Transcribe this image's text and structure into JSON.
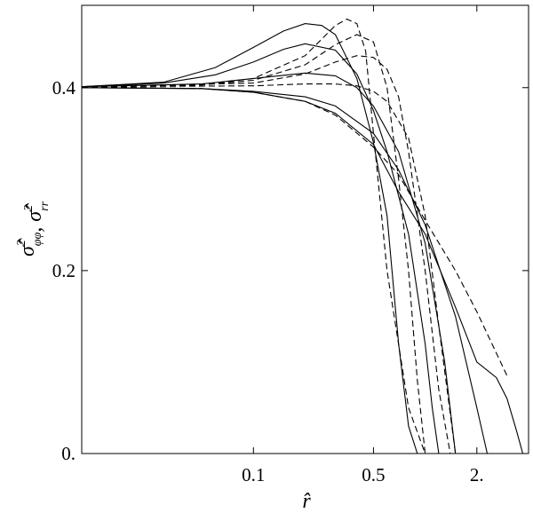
{
  "chart_data": {
    "type": "line",
    "x_scale": "log",
    "xlim": [
      0.01,
      4.0
    ],
    "ylim": [
      0,
      0.49
    ],
    "grid": false,
    "legend": "none",
    "xlabel": "r̂",
    "ylabel": {
      "parts": [
        {
          "text": "σ̂",
          "sup": "2",
          "sub": "φφ"
        },
        {
          "text": ", "
        },
        {
          "text": "σ̂",
          "sup": "2",
          "sub": "rr"
        }
      ]
    },
    "x_ticks": [
      {
        "value": 0.1,
        "label": "0.1"
      },
      {
        "value": 0.5,
        "label": "0.5"
      },
      {
        "value": 2.0,
        "label": "2."
      }
    ],
    "y_ticks": [
      {
        "value": 0.0,
        "label": "0."
      },
      {
        "value": 0.2,
        "label": "0.2"
      },
      {
        "value": 0.4,
        "label": "0.4"
      }
    ],
    "series": [
      {
        "style": "solid",
        "x": [
          0.01,
          0.03,
          0.06,
          0.1,
          0.15,
          0.2,
          0.25,
          0.3,
          0.4,
          0.5,
          0.6,
          0.7,
          0.8,
          0.9
        ],
        "y": [
          0.401,
          0.406,
          0.422,
          0.444,
          0.462,
          0.47,
          0.468,
          0.458,
          0.41,
          0.34,
          0.26,
          0.12,
          0.03,
          0.0
        ]
      },
      {
        "style": "solid",
        "x": [
          0.01,
          0.03,
          0.06,
          0.1,
          0.15,
          0.2,
          0.3,
          0.4,
          0.5,
          0.6,
          0.8,
          1.0,
          1.1,
          1.2
        ],
        "y": [
          0.401,
          0.405,
          0.414,
          0.428,
          0.442,
          0.448,
          0.441,
          0.415,
          0.375,
          0.33,
          0.24,
          0.12,
          0.05,
          0.0
        ]
      },
      {
        "style": "solid",
        "x": [
          0.01,
          0.05,
          0.1,
          0.2,
          0.3,
          0.4,
          0.5,
          0.7,
          1.0,
          1.3,
          1.5
        ],
        "y": [
          0.401,
          0.404,
          0.41,
          0.416,
          0.413,
          0.4,
          0.38,
          0.33,
          0.23,
          0.1,
          0.0
        ]
      },
      {
        "style": "solid",
        "x": [
          0.01,
          0.05,
          0.1,
          0.2,
          0.3,
          0.5,
          0.7,
          1.0,
          1.5,
          2.0,
          2.3
        ],
        "y": [
          0.4,
          0.399,
          0.396,
          0.39,
          0.38,
          0.35,
          0.31,
          0.25,
          0.15,
          0.05,
          0.0
        ]
      },
      {
        "style": "solid",
        "x": [
          0.01,
          0.05,
          0.1,
          0.2,
          0.3,
          0.5,
          0.7,
          1.0,
          1.5,
          2.0,
          2.6,
          3.0,
          3.4,
          3.7
        ],
        "y": [
          0.4,
          0.399,
          0.395,
          0.385,
          0.372,
          0.338,
          0.286,
          0.24,
          0.16,
          0.1,
          0.083,
          0.06,
          0.025,
          0.0
        ]
      },
      {
        "style": "dashed",
        "x": [
          0.01,
          0.05,
          0.1,
          0.2,
          0.3,
          0.35,
          0.4,
          0.45,
          0.5,
          0.6,
          0.8,
          1.0
        ],
        "y": [
          0.401,
          0.403,
          0.41,
          0.435,
          0.468,
          0.475,
          0.47,
          0.44,
          0.35,
          0.2,
          0.05,
          0.0
        ]
      },
      {
        "style": "dashed",
        "x": [
          0.01,
          0.05,
          0.1,
          0.2,
          0.3,
          0.4,
          0.5,
          0.6,
          0.7,
          0.8,
          0.9,
          1.0
        ],
        "y": [
          0.401,
          0.403,
          0.408,
          0.425,
          0.447,
          0.458,
          0.45,
          0.4,
          0.3,
          0.2,
          0.08,
          0.0
        ]
      },
      {
        "style": "dashed",
        "x": [
          0.01,
          0.1,
          0.2,
          0.3,
          0.4,
          0.5,
          0.6,
          0.7,
          0.8,
          1.0,
          1.2,
          1.4
        ],
        "y": [
          0.401,
          0.405,
          0.415,
          0.428,
          0.435,
          0.433,
          0.42,
          0.39,
          0.33,
          0.2,
          0.07,
          0.0
        ]
      },
      {
        "style": "dashed",
        "x": [
          0.01,
          0.1,
          0.2,
          0.3,
          0.4,
          0.5,
          0.6,
          0.8,
          1.0,
          1.2,
          1.5
        ],
        "y": [
          0.401,
          0.402,
          0.404,
          0.404,
          0.402,
          0.396,
          0.385,
          0.345,
          0.26,
          0.14,
          0.0
        ]
      },
      {
        "style": "dashed",
        "x": [
          0.01,
          0.05,
          0.1,
          0.2,
          0.3,
          0.5,
          0.7,
          1.0,
          1.5,
          2.0,
          3.0
        ],
        "y": [
          0.401,
          0.399,
          0.395,
          0.385,
          0.37,
          0.335,
          0.305,
          0.255,
          0.2,
          0.155,
          0.085
        ]
      }
    ]
  }
}
